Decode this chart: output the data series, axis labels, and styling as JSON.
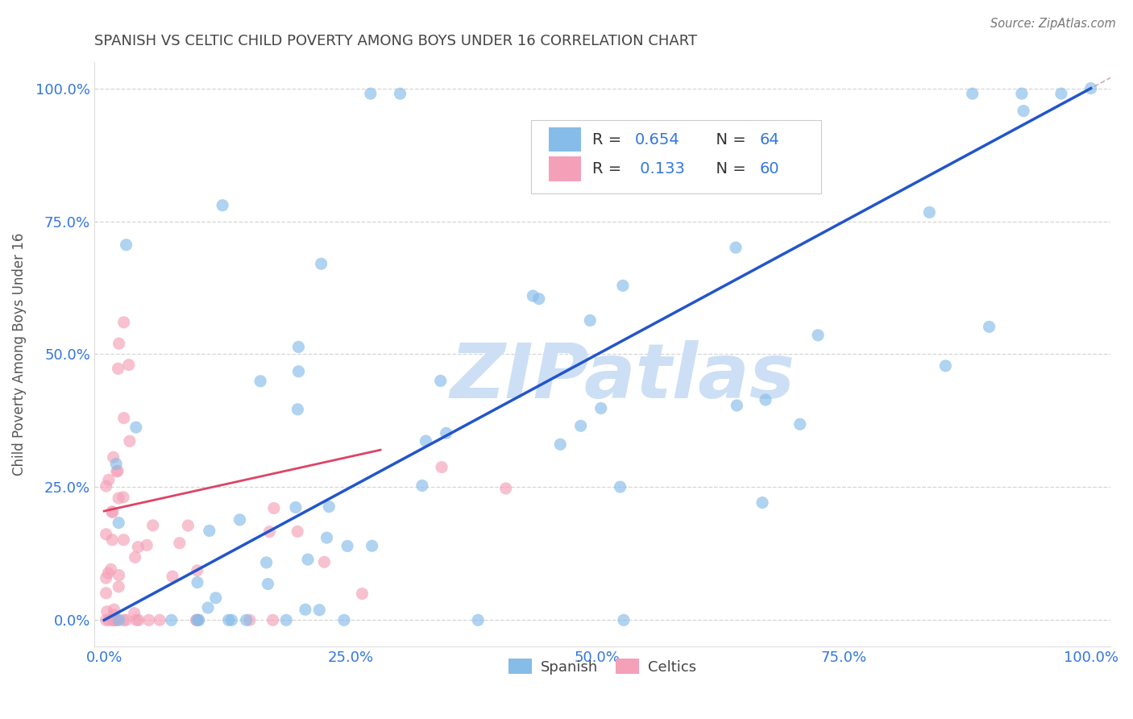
{
  "title": "SPANISH VS CELTIC CHILD POVERTY AMONG BOYS UNDER 16 CORRELATION CHART",
  "source": "Source: ZipAtlas.com",
  "ylabel": "Child Poverty Among Boys Under 16",
  "xlim": [
    -0.01,
    1.02
  ],
  "ylim": [
    -0.05,
    1.05
  ],
  "xticks": [
    0,
    0.25,
    0.5,
    0.75,
    1.0
  ],
  "yticks": [
    0,
    0.25,
    0.5,
    0.75,
    1.0
  ],
  "xtick_labels": [
    "0.0%",
    "25.0%",
    "50.0%",
    "75.0%",
    "100.0%"
  ],
  "ytick_labels": [
    "0.0%",
    "25.0%",
    "50.0%",
    "75.0%",
    "100.0%"
  ],
  "blue_color": "#85bce8",
  "pink_color": "#f4a0b8",
  "blue_line_color": "#2255cc",
  "pink_line_color": "#dd4466",
  "ref_line_color": "#d0a0a8",
  "watermark": "ZIPatlas",
  "watermark_color": "#ccdff5",
  "background_color": "#ffffff",
  "title_color": "#444444",
  "axis_label_color": "#555555",
  "tick_label_color": "#3377dd",
  "legend_text_color": "#333333",
  "legend_num_color": "#3377dd",
  "figsize": [
    14.06,
    8.92
  ],
  "dpi": 100,
  "spanish_line_x0": 0.0,
  "spanish_line_y0": 0.0,
  "spanish_line_x1": 1.0,
  "spanish_line_y1": 1.0,
  "celtics_line_x0": 0.0,
  "celtics_line_y0": 0.205,
  "celtics_line_x1": 0.28,
  "celtics_line_y1": 0.32
}
